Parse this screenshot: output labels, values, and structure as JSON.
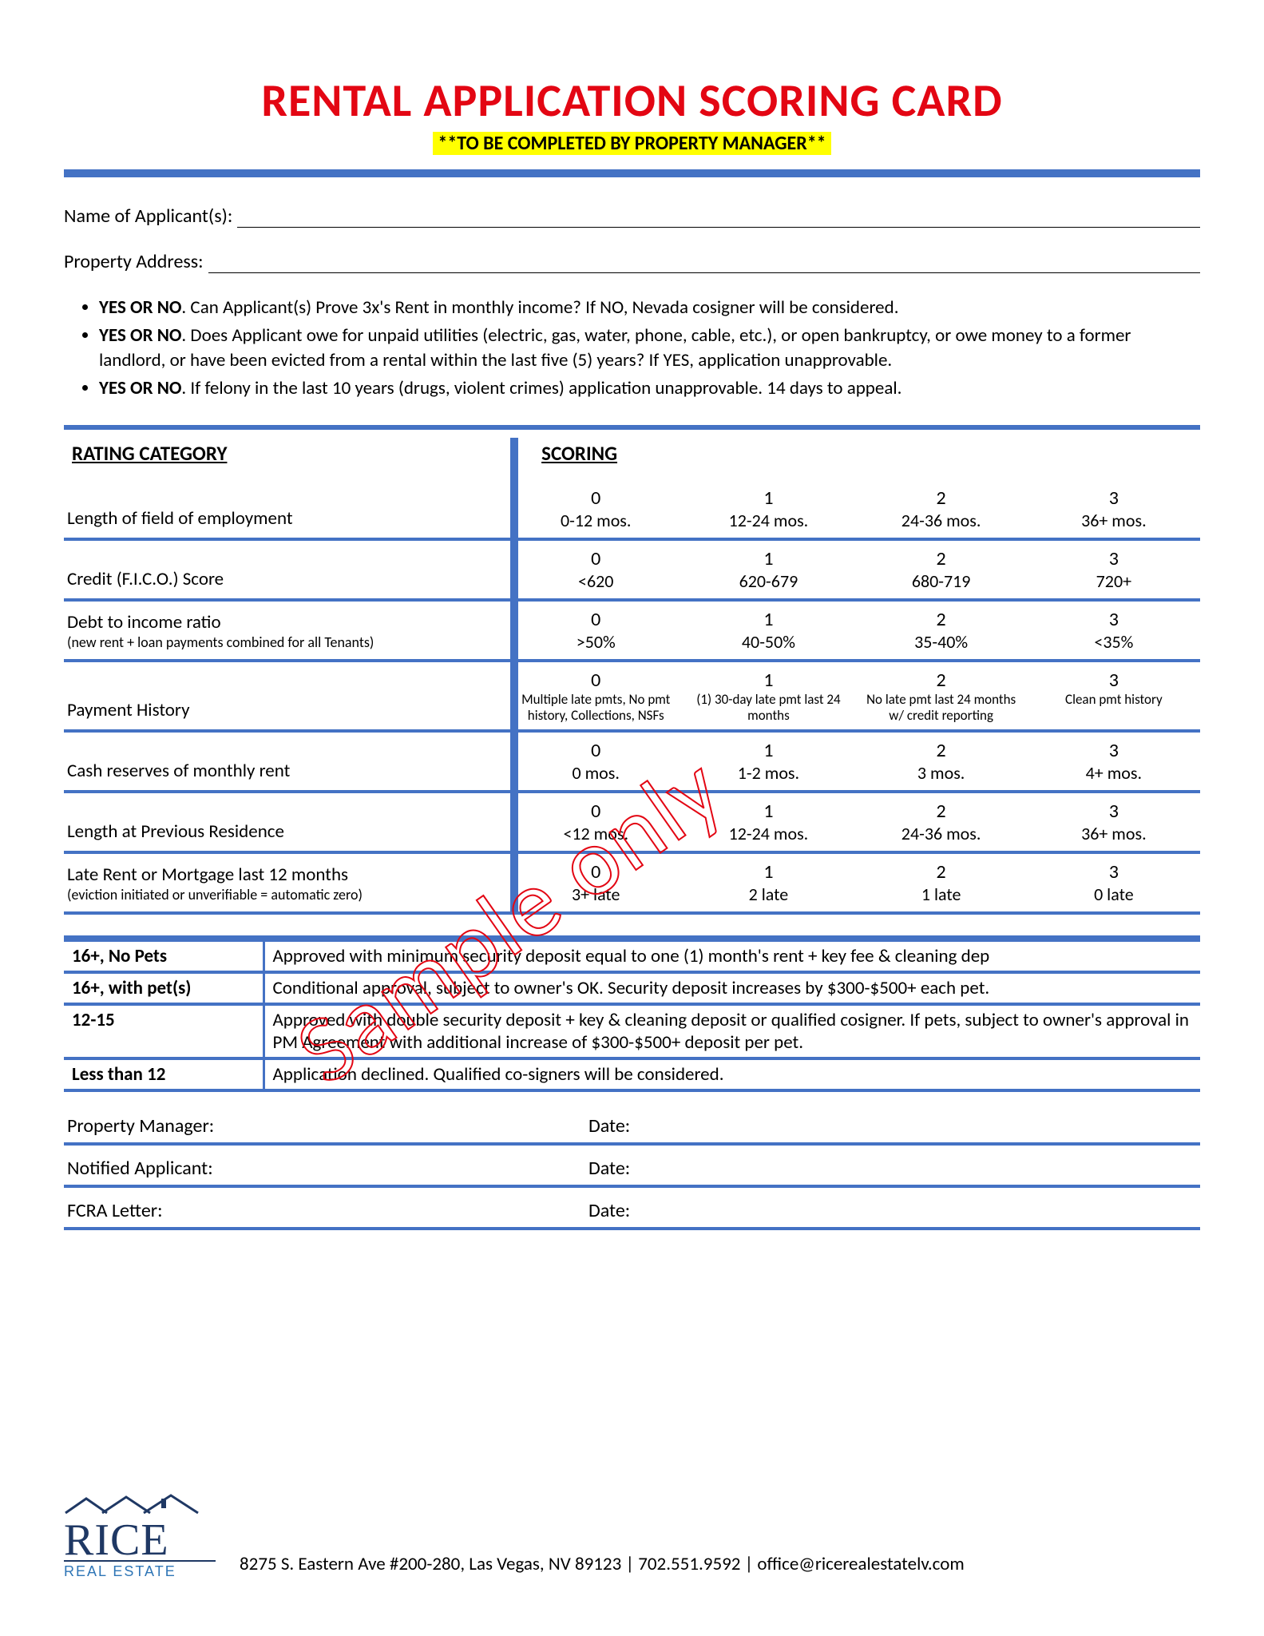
{
  "colors": {
    "title": "#e30613",
    "rule": "#4472c4",
    "highlight_bg": "#ffff00",
    "text": "#000000",
    "logo_primary": "#1f3864",
    "logo_secondary": "#2e75b6",
    "watermark_stroke": "#e30613"
  },
  "title": "RENTAL APPLICATION SCORING CARD",
  "subtitle": "**TO BE COMPLETED BY PROPERTY MANAGER**",
  "fields": {
    "applicant_label": "Name of Applicant(s):",
    "property_label": "Property Address:"
  },
  "bullets": [
    {
      "lead": "YES OR NO",
      "text": ". Can Applicant(s) Prove 3x's Rent in monthly income?  If NO, Nevada cosigner will be considered."
    },
    {
      "lead": "YES OR NO",
      "text": ". Does Applicant owe for unpaid utilities (electric, gas, water, phone, cable, etc.), or open bankruptcy, or owe money to a former landlord, or have been evicted from a rental within the last five (5) years? If YES, application unapprovable."
    },
    {
      "lead": "YES OR NO",
      "text": ". If felony in the last 10 years (drugs, violent crimes) application unapprovable. 14 days to appeal."
    }
  ],
  "scoring_headers": {
    "category": "RATING CATEGORY",
    "scoring": "SCORING"
  },
  "scoring_rows": [
    {
      "label": "Length of field of employment",
      "sub": "",
      "small": false,
      "cols": [
        {
          "n": "0",
          "l": "0-12 mos."
        },
        {
          "n": "1",
          "l": "12-24 mos."
        },
        {
          "n": "2",
          "l": "24-36 mos."
        },
        {
          "n": "3",
          "l": "36+ mos."
        }
      ]
    },
    {
      "label": "Credit (F.I.C.O.) Score",
      "sub": "",
      "small": false,
      "cols": [
        {
          "n": "0",
          "l": "<620"
        },
        {
          "n": "1",
          "l": "620-679"
        },
        {
          "n": "2",
          "l": "680-719"
        },
        {
          "n": "3",
          "l": "720+"
        }
      ]
    },
    {
      "label": "Debt to income ratio ",
      "sub": "(new rent + loan payments combined for all Tenants)",
      "small": false,
      "cols": [
        {
          "n": "0",
          "l": ">50%"
        },
        {
          "n": "1",
          "l": "40-50%"
        },
        {
          "n": "2",
          "l": "35-40%"
        },
        {
          "n": "3",
          "l": "<35%"
        }
      ]
    },
    {
      "label": "Payment History",
      "sub": "",
      "small": true,
      "cols": [
        {
          "n": "0",
          "l": "Multiple late pmts, No pmt history, Collections, NSFs"
        },
        {
          "n": "1",
          "l": "(1) 30-day late pmt last 24 months"
        },
        {
          "n": "2",
          "l": "No late pmt last 24 months w/ credit reporting"
        },
        {
          "n": "3",
          "l": "Clean pmt history"
        }
      ]
    },
    {
      "label": "Cash reserves of monthly rent",
      "sub": "",
      "small": false,
      "cols": [
        {
          "n": "0",
          "l": "0 mos."
        },
        {
          "n": "1",
          "l": "1-2 mos."
        },
        {
          "n": "2",
          "l": "3 mos."
        },
        {
          "n": "3",
          "l": "4+ mos."
        }
      ]
    },
    {
      "label": "Length at Previous Residence",
      "sub": "",
      "small": false,
      "cols": [
        {
          "n": "0",
          "l": "<12 mos."
        },
        {
          "n": "1",
          "l": "12-24 mos."
        },
        {
          "n": "2",
          "l": "24-36 mos."
        },
        {
          "n": "3",
          "l": "36+ mos."
        }
      ]
    },
    {
      "label": "Late Rent or Mortgage last 12 months",
      "sub": "(eviction initiated or unverifiable = automatic zero)",
      "small": false,
      "cols": [
        {
          "n": "0",
          "l": "3+ late"
        },
        {
          "n": "1",
          "l": "2 late"
        },
        {
          "n": "2",
          "l": "1 late"
        },
        {
          "n": "3",
          "l": "0 late"
        }
      ]
    }
  ],
  "approval": [
    {
      "k": "16+, No Pets",
      "v": "Approved with minimum security deposit equal to one (1) month's rent + key fee & cleaning dep"
    },
    {
      "k": "16+, with pet(s)",
      "v": "Conditional approval, subject to owner's OK. Security deposit increases by $300-$500+ each pet."
    },
    {
      "k": "12-15",
      "v": "Approved with double security deposit + key & cleaning deposit or qualified cosigner. If pets, subject to owner's approval in PM Agreement with additional increase of $300-$500+ deposit per pet."
    },
    {
      "k": "Less than 12",
      "v": "Application declined. Qualified co-signers will be considered."
    }
  ],
  "sig_rows": [
    {
      "a": "Property Manager:",
      "b": "Date:"
    },
    {
      "a": "Notified Applicant:",
      "b": "Date:"
    },
    {
      "a": "FCRA Letter:",
      "b": "Date:"
    }
  ],
  "watermark": "Sample only",
  "logo": {
    "main": "RICE",
    "sub": "REAL ESTATE"
  },
  "footer": "8275 S. Eastern Ave #200-280, Las Vegas, NV 89123 | 702.551.9592 | office@ricerealestatelv.com"
}
